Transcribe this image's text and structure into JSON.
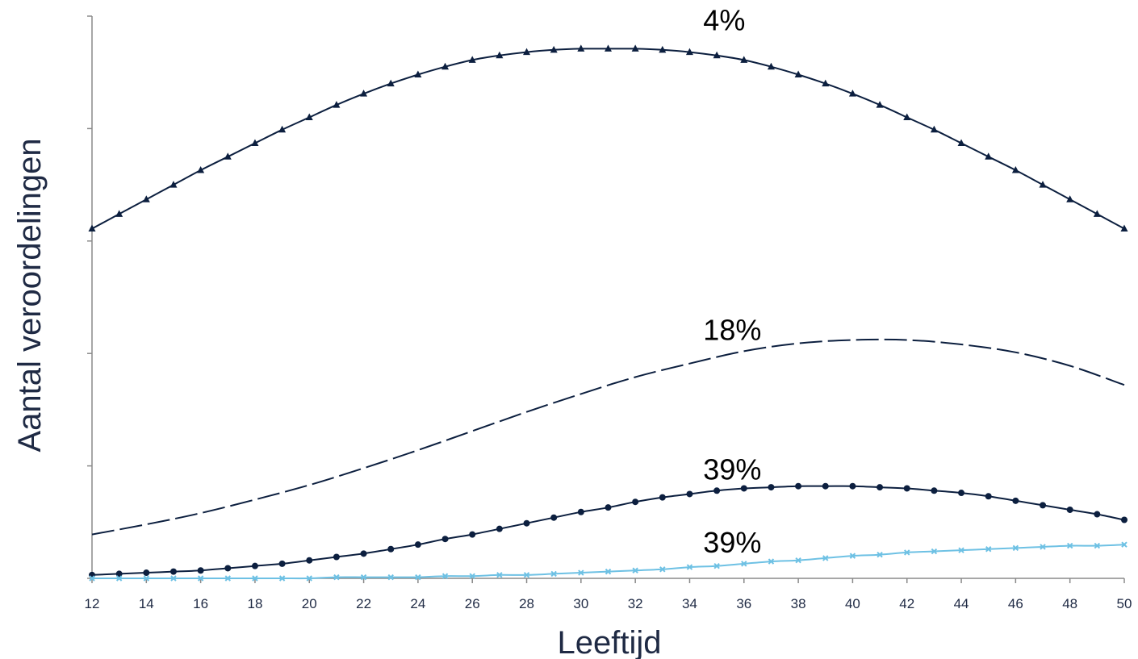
{
  "chart_data": {
    "type": "line",
    "title": "",
    "xlabel": "Leeftijd",
    "ylabel": "Aantal veroordelingen",
    "xlim": [
      12,
      50
    ],
    "ylim": [
      0,
      5
    ],
    "x_ticks": [
      "12",
      "14",
      "16",
      "18",
      "20",
      "22",
      "24",
      "26",
      "28",
      "30",
      "32",
      "34",
      "36",
      "38",
      "40",
      "42",
      "44",
      "46",
      "48",
      "50"
    ],
    "y_tick_values": [
      0,
      1,
      2,
      3,
      4,
      5
    ],
    "y_tick_labels_shown": false,
    "grid": false,
    "legend": "none",
    "series": [
      {
        "label": "4%",
        "color": "#0c1f3f",
        "dash": "solid",
        "marker": "triangle",
        "x": [
          12,
          13,
          14,
          15,
          16,
          17,
          18,
          19,
          20,
          21,
          22,
          23,
          24,
          25,
          26,
          27,
          28,
          29,
          30,
          31,
          32,
          33,
          34,
          35,
          36,
          37,
          38,
          39,
          40,
          41,
          42,
          43,
          44,
          45,
          46,
          47,
          48,
          49,
          50
        ],
        "y": [
          3.11,
          3.24,
          3.37,
          3.5,
          3.63,
          3.75,
          3.87,
          3.99,
          4.1,
          4.21,
          4.31,
          4.4,
          4.48,
          4.55,
          4.61,
          4.65,
          4.68,
          4.7,
          4.71,
          4.71,
          4.71,
          4.7,
          4.68,
          4.65,
          4.61,
          4.55,
          4.48,
          4.4,
          4.31,
          4.21,
          4.1,
          3.99,
          3.87,
          3.75,
          3.63,
          3.5,
          3.37,
          3.24,
          3.11
        ]
      },
      {
        "label": "18%",
        "color": "#0c1f3f",
        "dash": "long-dash",
        "marker": "none",
        "x": [
          12,
          14,
          16,
          18,
          20,
          22,
          24,
          26,
          28,
          30,
          32,
          34,
          36,
          38,
          40,
          42,
          44,
          46,
          48,
          50
        ],
        "y": [
          0.39,
          0.48,
          0.58,
          0.7,
          0.83,
          0.98,
          1.14,
          1.31,
          1.48,
          1.64,
          1.79,
          1.91,
          2.02,
          2.09,
          2.12,
          2.12,
          2.08,
          2.01,
          1.89,
          1.72
        ]
      },
      {
        "label": "39%",
        "color": "#0c1f3f",
        "dash": "solid",
        "marker": "circle",
        "x": [
          12,
          13,
          14,
          15,
          16,
          17,
          18,
          19,
          20,
          21,
          22,
          23,
          24,
          25,
          26,
          27,
          28,
          29,
          30,
          31,
          32,
          33,
          34,
          35,
          36,
          37,
          38,
          39,
          40,
          41,
          42,
          43,
          44,
          45,
          46,
          47,
          48,
          49,
          50
        ],
        "y": [
          0.03,
          0.04,
          0.05,
          0.06,
          0.07,
          0.09,
          0.11,
          0.13,
          0.16,
          0.19,
          0.22,
          0.26,
          0.3,
          0.35,
          0.39,
          0.44,
          0.49,
          0.54,
          0.59,
          0.63,
          0.68,
          0.72,
          0.75,
          0.78,
          0.8,
          0.81,
          0.82,
          0.82,
          0.82,
          0.81,
          0.8,
          0.78,
          0.76,
          0.73,
          0.69,
          0.65,
          0.61,
          0.57,
          0.52
        ]
      },
      {
        "label": "39%",
        "color": "#6ec1e4",
        "dash": "solid",
        "marker": "x",
        "x": [
          12,
          13,
          14,
          15,
          16,
          17,
          18,
          19,
          20,
          21,
          22,
          23,
          24,
          25,
          26,
          27,
          28,
          29,
          30,
          31,
          32,
          33,
          34,
          35,
          36,
          37,
          38,
          39,
          40,
          41,
          42,
          43,
          44,
          45,
          46,
          47,
          48,
          49,
          50
        ],
        "y": [
          0.0,
          0.0,
          0.0,
          0.0,
          0.0,
          0.0,
          0.0,
          0.0,
          0.0,
          0.01,
          0.01,
          0.01,
          0.01,
          0.02,
          0.02,
          0.03,
          0.03,
          0.04,
          0.05,
          0.06,
          0.07,
          0.08,
          0.1,
          0.11,
          0.13,
          0.15,
          0.16,
          0.18,
          0.2,
          0.21,
          0.23,
          0.24,
          0.25,
          0.26,
          0.27,
          0.28,
          0.29,
          0.29,
          0.3
        ]
      }
    ]
  }
}
